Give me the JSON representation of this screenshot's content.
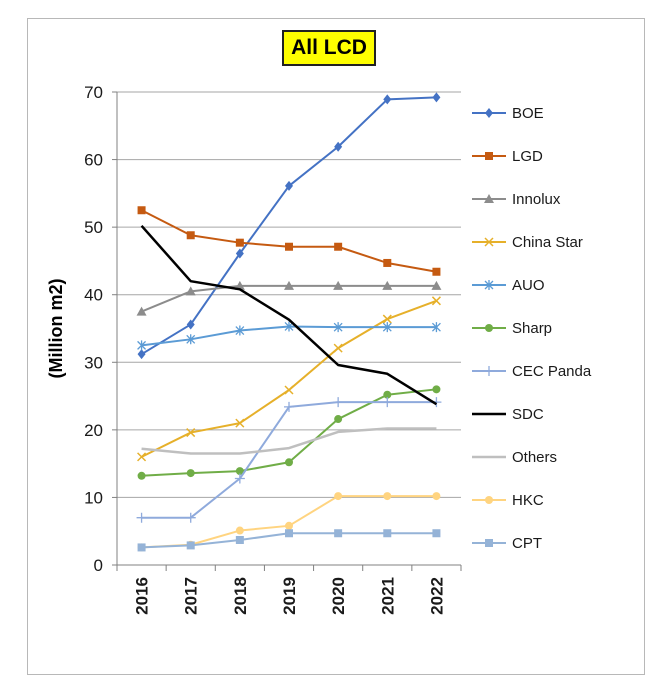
{
  "chart_data": {
    "type": "line",
    "title": "All LCD",
    "ylabel": "(Million m2)",
    "xlabel": "",
    "ylim": [
      0,
      70
    ],
    "yticks": [
      "0",
      "10",
      "20",
      "30",
      "40",
      "50",
      "60",
      "70"
    ],
    "categories": [
      "2016",
      "2017",
      "2018",
      "2019",
      "2020",
      "2021",
      "2022"
    ],
    "grid": "horizontal",
    "legend": "right",
    "series": [
      {
        "name": "BOE",
        "color": "#4472c4",
        "marker": "diamond",
        "values": [
          31.2,
          35.6,
          46.1,
          56.1,
          61.9,
          68.9,
          69.2
        ]
      },
      {
        "name": "LGD",
        "color": "#c55a11",
        "marker": "square",
        "values": [
          52.5,
          48.8,
          47.7,
          47.1,
          47.1,
          44.7,
          43.4
        ]
      },
      {
        "name": "Innolux",
        "color": "#8c8c8c",
        "marker": "triangle",
        "values": [
          37.5,
          40.5,
          41.3,
          41.3,
          41.3,
          41.3,
          41.3
        ]
      },
      {
        "name": "China Star",
        "color": "#e6b02a",
        "marker": "x",
        "values": [
          16.0,
          19.6,
          21.0,
          25.9,
          32.1,
          36.4,
          39.1
        ]
      },
      {
        "name": "AUO",
        "color": "#5b9bd5",
        "marker": "star",
        "values": [
          32.5,
          33.4,
          34.7,
          35.3,
          35.2,
          35.2,
          35.2
        ]
      },
      {
        "name": "Sharp",
        "color": "#70ad47",
        "marker": "circle",
        "values": [
          13.2,
          13.6,
          13.9,
          15.2,
          21.6,
          25.2,
          26.0
        ]
      },
      {
        "name": "CEC Panda",
        "color": "#8faadc",
        "marker": "plus",
        "values": [
          7.0,
          7.0,
          12.8,
          23.4,
          24.1,
          24.1,
          24.1
        ]
      },
      {
        "name": "SDC",
        "color": "#000000",
        "marker": "none",
        "values": [
          50.2,
          42.0,
          40.8,
          36.3,
          29.6,
          28.3,
          23.8
        ]
      },
      {
        "name": "Others",
        "color": "#bfbfbf",
        "marker": "none",
        "values": [
          17.2,
          16.5,
          16.5,
          17.3,
          19.7,
          20.2,
          20.2
        ]
      },
      {
        "name": "HKC",
        "color": "#ffd480",
        "marker": "circle",
        "values": [
          2.6,
          3.0,
          5.1,
          5.8,
          10.2,
          10.2,
          10.2
        ]
      },
      {
        "name": "CPT",
        "color": "#95b3d7",
        "marker": "square",
        "values": [
          2.6,
          2.9,
          3.7,
          4.7,
          4.7,
          4.7,
          4.7
        ]
      }
    ]
  }
}
